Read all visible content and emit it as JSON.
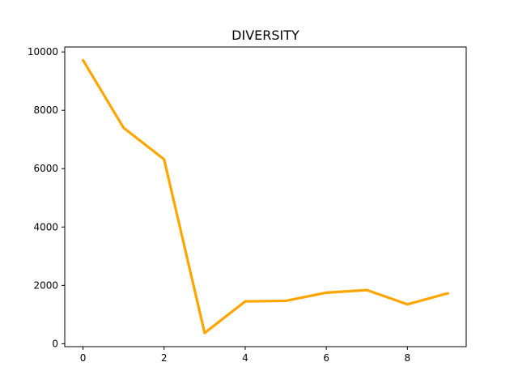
{
  "chart_data": {
    "type": "line",
    "title": "DIVERSITY",
    "xlabel": "",
    "ylabel": "",
    "x": [
      0,
      1,
      2,
      3,
      4,
      5,
      6,
      7,
      8,
      9
    ],
    "series": [
      {
        "values": [
          9720,
          7400,
          6320,
          370,
          1450,
          1470,
          1750,
          1840,
          1350,
          1730
        ],
        "color": "#ffa500"
      }
    ],
    "xlim": [
      -0.45,
      9.45
    ],
    "ylim": [
      -100,
      10170
    ],
    "xticks": [
      0,
      2,
      4,
      6,
      8
    ],
    "xtick_labels": [
      "0",
      "2",
      "4",
      "6",
      "8"
    ],
    "yticks": [
      0,
      2000,
      4000,
      6000,
      8000,
      10000
    ],
    "ytick_labels": [
      "0",
      "2000",
      "4000",
      "6000",
      "8000",
      "10000"
    ],
    "grid": false,
    "legend": "none"
  }
}
